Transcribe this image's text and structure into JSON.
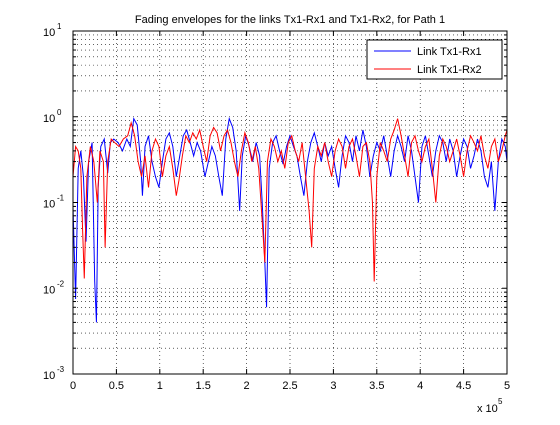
{
  "chart_data": {
    "type": "line",
    "title": "Fading envelopes for the links Tx1-Rx1 and Tx1-Rx2, for Path 1",
    "xlabel": "",
    "ylabel": "",
    "x_multiplier_label": "x 10",
    "x_multiplier_exp": "5",
    "xlim": [
      0,
      5
    ],
    "ylim": [
      0.001,
      10
    ],
    "yscale": "log",
    "grid": true,
    "legend_position": "top-right",
    "x_ticks": [
      {
        "value": 0,
        "label": "0"
      },
      {
        "value": 0.5,
        "label": "0.5"
      },
      {
        "value": 1,
        "label": "1"
      },
      {
        "value": 1.5,
        "label": "1.5"
      },
      {
        "value": 2,
        "label": "2"
      },
      {
        "value": 2.5,
        "label": "2.5"
      },
      {
        "value": 3,
        "label": "3"
      },
      {
        "value": 3.5,
        "label": "3.5"
      },
      {
        "value": 4,
        "label": "4"
      },
      {
        "value": 4.5,
        "label": "4.5"
      },
      {
        "value": 5,
        "label": "5"
      }
    ],
    "y_ticks": [
      {
        "value": 0.001,
        "base": "10",
        "exp": "-3"
      },
      {
        "value": 0.01,
        "base": "10",
        "exp": "-2"
      },
      {
        "value": 0.1,
        "base": "10",
        "exp": "-1"
      },
      {
        "value": 1,
        "base": "10",
        "exp": "0"
      },
      {
        "value": 10,
        "base": "10",
        "exp": "1"
      }
    ],
    "series": [
      {
        "name": "Link Tx1-Rx1",
        "color": "#0000ff",
        "points": [
          [
            0.0,
            0.09
          ],
          [
            0.03,
            0.0075
          ],
          [
            0.06,
            0.25
          ],
          [
            0.09,
            0.4
          ],
          [
            0.12,
            0.2
          ],
          [
            0.15,
            0.035
          ],
          [
            0.18,
            0.3
          ],
          [
            0.22,
            0.5
          ],
          [
            0.25,
            0.012
          ],
          [
            0.27,
            0.004
          ],
          [
            0.29,
            0.15
          ],
          [
            0.32,
            0.45
          ],
          [
            0.36,
            0.55
          ],
          [
            0.4,
            0.22
          ],
          [
            0.43,
            0.5
          ],
          [
            0.47,
            0.55
          ],
          [
            0.52,
            0.5
          ],
          [
            0.57,
            0.4
          ],
          [
            0.62,
            0.55
          ],
          [
            0.66,
            0.45
          ],
          [
            0.7,
            0.95
          ],
          [
            0.74,
            0.8
          ],
          [
            0.78,
            0.3
          ],
          [
            0.8,
            0.12
          ],
          [
            0.83,
            0.45
          ],
          [
            0.87,
            0.6
          ],
          [
            0.91,
            0.3
          ],
          [
            0.95,
            0.2
          ],
          [
            0.99,
            0.15
          ],
          [
            1.03,
            0.3
          ],
          [
            1.07,
            0.55
          ],
          [
            1.11,
            0.65
          ],
          [
            1.15,
            0.45
          ],
          [
            1.19,
            0.2
          ],
          [
            1.23,
            0.35
          ],
          [
            1.27,
            0.6
          ],
          [
            1.31,
            0.7
          ],
          [
            1.35,
            0.5
          ],
          [
            1.39,
            0.35
          ],
          [
            1.43,
            0.5
          ],
          [
            1.47,
            0.4
          ],
          [
            1.52,
            0.2
          ],
          [
            1.56,
            0.3
          ],
          [
            1.6,
            0.45
          ],
          [
            1.64,
            0.35
          ],
          [
            1.68,
            0.2
          ],
          [
            1.72,
            0.12
          ],
          [
            1.76,
            0.55
          ],
          [
            1.8,
            0.95
          ],
          [
            1.84,
            0.75
          ],
          [
            1.88,
            0.4
          ],
          [
            1.92,
            0.08
          ],
          [
            1.95,
            0.35
          ],
          [
            1.99,
            0.6
          ],
          [
            2.03,
            0.45
          ],
          [
            2.07,
            0.3
          ],
          [
            2.11,
            0.5
          ],
          [
            2.15,
            0.35
          ],
          [
            2.18,
            0.1
          ],
          [
            2.21,
            0.02
          ],
          [
            2.23,
            0.006
          ],
          [
            2.26,
            0.25
          ],
          [
            2.3,
            0.5
          ],
          [
            2.34,
            0.6
          ],
          [
            2.38,
            0.4
          ],
          [
            2.42,
            0.28
          ],
          [
            2.46,
            0.45
          ],
          [
            2.5,
            0.6
          ],
          [
            2.54,
            0.45
          ],
          [
            2.58,
            0.35
          ],
          [
            2.62,
            0.2
          ],
          [
            2.66,
            0.12
          ],
          [
            2.7,
            0.3
          ],
          [
            2.74,
            0.5
          ],
          [
            2.78,
            0.65
          ],
          [
            2.82,
            0.45
          ],
          [
            2.86,
            0.3
          ],
          [
            2.9,
            0.5
          ],
          [
            2.94,
            0.35
          ],
          [
            2.98,
            0.45
          ],
          [
            3.02,
            0.25
          ],
          [
            3.06,
            0.15
          ],
          [
            3.1,
            0.35
          ],
          [
            3.14,
            0.6
          ],
          [
            3.18,
            0.5
          ],
          [
            3.22,
            0.3
          ],
          [
            3.26,
            0.6
          ],
          [
            3.3,
            0.4
          ],
          [
            3.34,
            0.7
          ],
          [
            3.38,
            0.45
          ],
          [
            3.42,
            0.2
          ],
          [
            3.46,
            0.35
          ],
          [
            3.5,
            0.5
          ],
          [
            3.54,
            0.4
          ],
          [
            3.58,
            0.6
          ],
          [
            3.62,
            0.35
          ],
          [
            3.66,
            0.2
          ],
          [
            3.7,
            0.4
          ],
          [
            3.74,
            0.6
          ],
          [
            3.78,
            0.45
          ],
          [
            3.82,
            0.3
          ],
          [
            3.86,
            0.6
          ],
          [
            3.9,
            0.4
          ],
          [
            3.94,
            0.2
          ],
          [
            3.98,
            0.1
          ],
          [
            4.02,
            0.45
          ],
          [
            4.06,
            0.6
          ],
          [
            4.1,
            0.35
          ],
          [
            4.14,
            0.2
          ],
          [
            4.18,
            0.4
          ],
          [
            4.22,
            0.6
          ],
          [
            4.26,
            0.5
          ],
          [
            4.3,
            0.3
          ],
          [
            4.34,
            0.55
          ],
          [
            4.38,
            0.4
          ],
          [
            4.42,
            0.2
          ],
          [
            4.46,
            0.35
          ],
          [
            4.5,
            0.55
          ],
          [
            4.54,
            0.45
          ],
          [
            4.58,
            0.25
          ],
          [
            4.62,
            0.35
          ],
          [
            4.66,
            0.55
          ],
          [
            4.7,
            0.4
          ],
          [
            4.74,
            0.2
          ],
          [
            4.78,
            0.15
          ],
          [
            4.82,
            0.3
          ],
          [
            4.86,
            0.08
          ],
          [
            4.9,
            0.3
          ],
          [
            4.94,
            0.55
          ],
          [
            4.98,
            0.45
          ],
          [
            5.0,
            0.3
          ]
        ]
      },
      {
        "name": "Link Tx1-Rx2",
        "color": "#ff0000",
        "points": [
          [
            0.0,
            0.2
          ],
          [
            0.03,
            0.45
          ],
          [
            0.06,
            0.4
          ],
          [
            0.09,
            0.25
          ],
          [
            0.11,
            0.05
          ],
          [
            0.13,
            0.013
          ],
          [
            0.16,
            0.2
          ],
          [
            0.2,
            0.45
          ],
          [
            0.24,
            0.3
          ],
          [
            0.28,
            0.1
          ],
          [
            0.31,
            0.4
          ],
          [
            0.35,
            0.3
          ],
          [
            0.37,
            0.03
          ],
          [
            0.4,
            0.3
          ],
          [
            0.44,
            0.55
          ],
          [
            0.48,
            0.5
          ],
          [
            0.53,
            0.45
          ],
          [
            0.58,
            0.55
          ],
          [
            0.63,
            0.6
          ],
          [
            0.67,
            0.85
          ],
          [
            0.71,
            0.6
          ],
          [
            0.75,
            0.3
          ],
          [
            0.79,
            0.2
          ],
          [
            0.83,
            0.35
          ],
          [
            0.87,
            0.15
          ],
          [
            0.91,
            0.4
          ],
          [
            0.95,
            0.55
          ],
          [
            0.99,
            0.45
          ],
          [
            1.03,
            0.2
          ],
          [
            1.07,
            0.35
          ],
          [
            1.11,
            0.45
          ],
          [
            1.15,
            0.25
          ],
          [
            1.19,
            0.12
          ],
          [
            1.22,
            0.18
          ],
          [
            1.26,
            0.35
          ],
          [
            1.3,
            0.6
          ],
          [
            1.34,
            0.5
          ],
          [
            1.38,
            0.65
          ],
          [
            1.42,
            0.55
          ],
          [
            1.46,
            0.7
          ],
          [
            1.5,
            0.45
          ],
          [
            1.54,
            0.3
          ],
          [
            1.58,
            0.6
          ],
          [
            1.62,
            0.75
          ],
          [
            1.66,
            0.65
          ],
          [
            1.7,
            0.4
          ],
          [
            1.74,
            0.6
          ],
          [
            1.78,
            0.7
          ],
          [
            1.82,
            0.5
          ],
          [
            1.86,
            0.3
          ],
          [
            1.9,
            0.2
          ],
          [
            1.94,
            0.4
          ],
          [
            1.98,
            0.65
          ],
          [
            2.02,
            0.5
          ],
          [
            2.06,
            0.3
          ],
          [
            2.1,
            0.45
          ],
          [
            2.14,
            0.25
          ],
          [
            2.18,
            0.06
          ],
          [
            2.21,
            0.02
          ],
          [
            2.24,
            0.3
          ],
          [
            2.28,
            0.55
          ],
          [
            2.32,
            0.45
          ],
          [
            2.36,
            0.3
          ],
          [
            2.4,
            0.4
          ],
          [
            2.44,
            0.25
          ],
          [
            2.48,
            0.5
          ],
          [
            2.52,
            0.6
          ],
          [
            2.56,
            0.4
          ],
          [
            2.6,
            0.3
          ],
          [
            2.64,
            0.5
          ],
          [
            2.68,
            0.2
          ],
          [
            2.72,
            0.08
          ],
          [
            2.75,
            0.03
          ],
          [
            2.78,
            0.25
          ],
          [
            2.82,
            0.45
          ],
          [
            2.86,
            0.35
          ],
          [
            2.9,
            0.5
          ],
          [
            2.94,
            0.3
          ],
          [
            2.98,
            0.2
          ],
          [
            3.02,
            0.4
          ],
          [
            3.06,
            0.55
          ],
          [
            3.1,
            0.45
          ],
          [
            3.14,
            0.25
          ],
          [
            3.18,
            0.45
          ],
          [
            3.22,
            0.55
          ],
          [
            3.26,
            0.35
          ],
          [
            3.3,
            0.2
          ],
          [
            3.34,
            0.45
          ],
          [
            3.38,
            0.5
          ],
          [
            3.42,
            0.3
          ],
          [
            3.45,
            0.1
          ],
          [
            3.47,
            0.012
          ],
          [
            3.5,
            0.2
          ],
          [
            3.54,
            0.5
          ],
          [
            3.58,
            0.4
          ],
          [
            3.62,
            0.3
          ],
          [
            3.66,
            0.55
          ],
          [
            3.7,
            0.7
          ],
          [
            3.74,
            0.95
          ],
          [
            3.78,
            0.6
          ],
          [
            3.82,
            0.35
          ],
          [
            3.86,
            0.2
          ],
          [
            3.9,
            0.5
          ],
          [
            3.94,
            0.6
          ],
          [
            3.98,
            0.4
          ],
          [
            4.02,
            0.3
          ],
          [
            4.06,
            0.45
          ],
          [
            4.1,
            0.55
          ],
          [
            4.14,
            0.25
          ],
          [
            4.18,
            0.1
          ],
          [
            4.22,
            0.35
          ],
          [
            4.26,
            0.55
          ],
          [
            4.3,
            0.45
          ],
          [
            4.34,
            0.3
          ],
          [
            4.38,
            0.4
          ],
          [
            4.42,
            0.55
          ],
          [
            4.46,
            0.35
          ],
          [
            4.5,
            0.2
          ],
          [
            4.54,
            0.4
          ],
          [
            4.58,
            0.6
          ],
          [
            4.62,
            0.5
          ],
          [
            4.66,
            0.4
          ],
          [
            4.7,
            0.6
          ],
          [
            4.74,
            0.35
          ],
          [
            4.78,
            0.25
          ],
          [
            4.82,
            0.45
          ],
          [
            4.86,
            0.55
          ],
          [
            4.9,
            0.3
          ],
          [
            4.94,
            0.4
          ],
          [
            4.98,
            0.6
          ],
          [
            5.0,
            0.7
          ]
        ]
      }
    ]
  }
}
